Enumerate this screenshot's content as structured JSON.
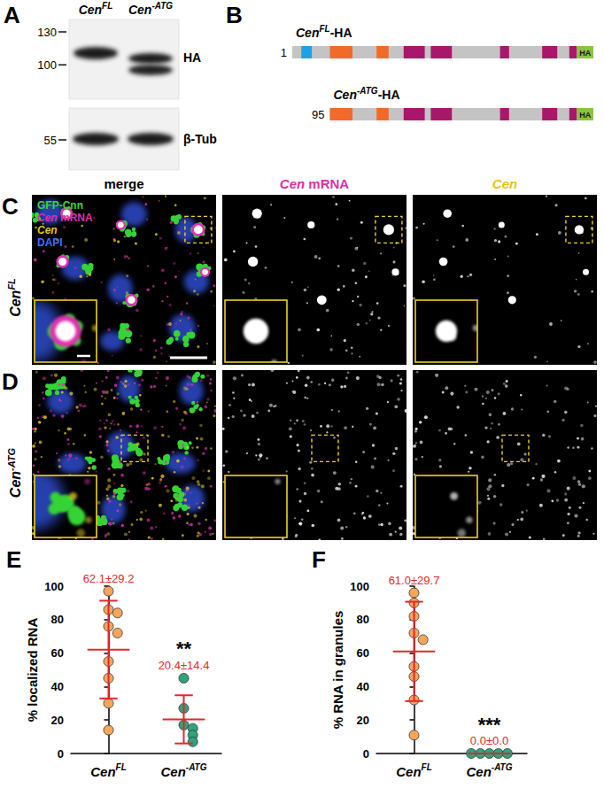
{
  "panels": {
    "A": {
      "letter": "A",
      "lanes": [
        "CenFL",
        "Cen-ATG"
      ],
      "markers": [
        130,
        100,
        55
      ],
      "blots": [
        "HA",
        "β-Tub"
      ]
    },
    "B": {
      "letter": "B",
      "constructs": [
        {
          "label": "CenFL-HA",
          "start": 1,
          "tag": "HA"
        },
        {
          "label": "Cen-ATG-HA",
          "start": 95,
          "tag": "HA"
        }
      ]
    },
    "images": {
      "columns": [
        "merge",
        "Cen mRNA",
        "Cen"
      ],
      "rows": [
        {
          "letter": "C",
          "genotype": "CenFL"
        },
        {
          "letter": "D",
          "genotype": "Cen-ATG"
        }
      ],
      "legend": [
        {
          "text": "GFP-Cnn",
          "color": "#3ad43a"
        },
        {
          "text": "Cen mRNA",
          "color": "#d832a8"
        },
        {
          "text": "Cen",
          "color": "#e8c416"
        },
        {
          "text": "DAPI",
          "color": "#3f6fff"
        }
      ]
    }
  },
  "chart_data": [
    {
      "type": "scatter",
      "title": "E",
      "ylabel": "% localized RNA",
      "categories": [
        "CenFL",
        "Cen-ATG"
      ],
      "colors": [
        "#f5a65b",
        "#2fa37c"
      ],
      "values": [
        [
          97,
          86,
          84,
          76,
          72,
          55,
          45,
          30,
          14
        ],
        [
          45,
          27,
          17,
          15,
          11,
          7
        ]
      ],
      "error_bars": {
        "mean": [
          62.1,
          20.4
        ],
        "sd": [
          29.2,
          14.4
        ],
        "color": "#e8262a"
      },
      "value_labels": [
        "62.1±29.2",
        "20.4±14.4"
      ],
      "significance": [
        null,
        "**"
      ],
      "ylim": [
        0,
        100
      ],
      "yticks": [
        0,
        20,
        40,
        60,
        80,
        100
      ],
      "grid": false
    },
    {
      "type": "scatter",
      "title": "F",
      "ylabel": "% RNA in granules",
      "categories": [
        "CenFL",
        "Cen-ATG"
      ],
      "colors": [
        "#f5a65b",
        "#2fa37c"
      ],
      "values": [
        [
          96,
          90,
          82,
          72,
          68,
          52,
          46,
          32,
          11
        ],
        [
          0,
          0,
          0,
          0,
          0
        ]
      ],
      "error_bars": {
        "mean": [
          61.0,
          0.0
        ],
        "sd": [
          29.7,
          0.0
        ],
        "color": "#e8262a"
      },
      "value_labels": [
        "61.0±29.7",
        "0.0±0.0"
      ],
      "significance": [
        null,
        "***"
      ],
      "ylim": [
        0,
        100
      ],
      "yticks": [
        0,
        20,
        40,
        60,
        80,
        100
      ],
      "grid": false
    }
  ]
}
